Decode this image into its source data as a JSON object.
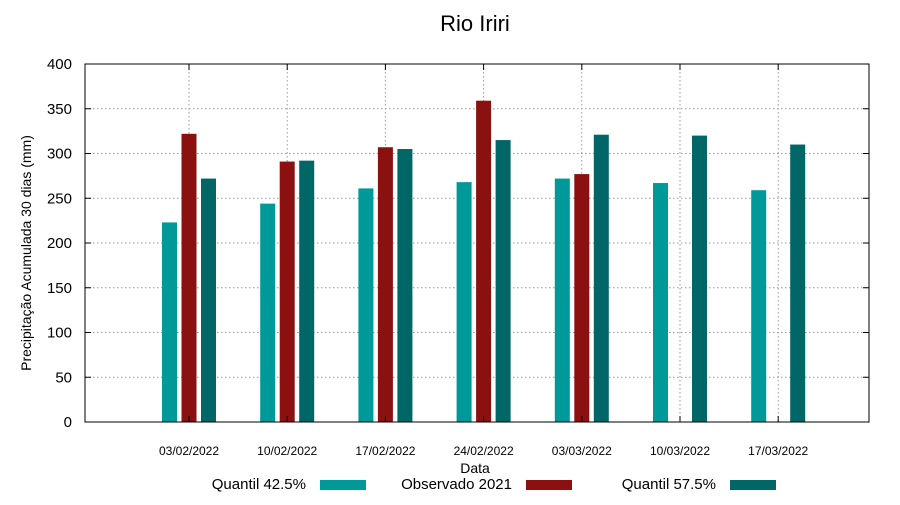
{
  "chart_data": {
    "type": "bar",
    "title": "Rio Iriri",
    "xlabel": "Data",
    "ylabel": "Precipitação Acumulada 30 dias (mm)",
    "ylim": [
      0,
      400
    ],
    "yticks": [
      0,
      50,
      100,
      150,
      200,
      250,
      300,
      350,
      400
    ],
    "grid": true,
    "legend_position": "bottom",
    "categories": [
      "03/02/2022",
      "10/02/2022",
      "17/02/2022",
      "24/02/2022",
      "03/03/2022",
      "10/03/2022",
      "17/03/2022"
    ],
    "series": [
      {
        "name": "Quantil 42.5%",
        "color": "#009999",
        "values": [
          223,
          244,
          261,
          268,
          272,
          267,
          259
        ]
      },
      {
        "name": "Observado 2021",
        "color": "#8b1010",
        "values": [
          322,
          291,
          307,
          359,
          277,
          null,
          null
        ]
      },
      {
        "name": "Quantil 57.5%",
        "color": "#006666",
        "values": [
          272,
          292,
          305,
          315,
          321,
          320,
          310
        ]
      }
    ]
  }
}
